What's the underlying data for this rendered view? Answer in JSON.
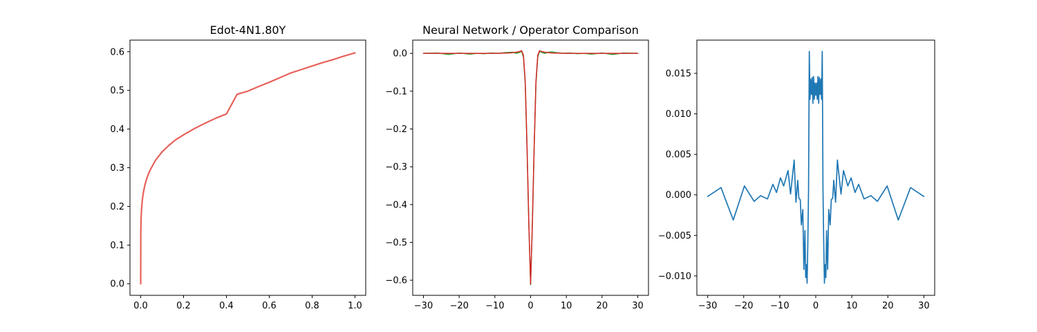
{
  "chart_data": [
    {
      "type": "line",
      "title": "Edot-4N1.80Y",
      "xlabel": "",
      "ylabel": "",
      "xlim": [
        -0.05,
        1.05
      ],
      "ylim": [
        -0.03,
        0.63
      ],
      "xticks": [
        0.0,
        0.2,
        0.4,
        0.6,
        0.8,
        1.0
      ],
      "xtick_labels": [
        "0.0",
        "0.2",
        "0.4",
        "0.6",
        "0.8",
        "1.0"
      ],
      "yticks": [
        0.0,
        0.1,
        0.2,
        0.3,
        0.4,
        0.5,
        0.6
      ],
      "ytick_labels": [
        "0.0",
        "0.1",
        "0.2",
        "0.3",
        "0.4",
        "0.5",
        "0.6"
      ],
      "grid": false,
      "series": [
        {
          "color": "#e8615a",
          "linewidth": 2.2,
          "x": [
            0.0,
            0.0005,
            0.001,
            0.002,
            0.004,
            0.007,
            0.01,
            0.015,
            0.02,
            0.03,
            0.04,
            0.05,
            0.07,
            0.1,
            0.13,
            0.16,
            0.2,
            0.25,
            0.3,
            0.35,
            0.4,
            0.45,
            0.5,
            0.55,
            0.6,
            0.65,
            0.7,
            0.75,
            0.8,
            0.85,
            0.9,
            0.95,
            1.0
          ],
          "y": [
            0.0,
            0.134,
            0.151,
            0.171,
            0.193,
            0.213,
            0.227,
            0.243,
            0.256,
            0.275,
            0.289,
            0.3,
            0.32,
            0.341,
            0.357,
            0.371,
            0.385,
            0.401,
            0.415,
            0.428,
            0.439,
            0.49,
            0.498,
            0.51,
            0.521,
            0.533,
            0.545,
            0.554,
            0.563,
            0.572,
            0.58,
            0.589,
            0.597
          ]
        }
      ]
    },
    {
      "type": "line",
      "title": "Neural Network / Operator Comparison",
      "xlabel": "",
      "ylabel": "",
      "xlim": [
        -33,
        33
      ],
      "ylim": [
        -0.64,
        0.035
      ],
      "xticks": [
        -30,
        -20,
        -10,
        0,
        10,
        20,
        30
      ],
      "xtick_labels": [
        "−30",
        "−20",
        "−10",
        "0",
        "10",
        "20",
        "30"
      ],
      "yticks": [
        0.0,
        -0.1,
        -0.2,
        -0.3,
        -0.4,
        -0.5,
        -0.6
      ],
      "ytick_labels": [
        "0.0",
        "−0.1",
        "−0.2",
        "−0.3",
        "−0.4",
        "−0.5",
        "−0.6"
      ],
      "grid": false,
      "series": [
        {
          "color": "#2ca02c",
          "linewidth": 1.5,
          "x": [
            -30,
            -26,
            -23,
            -20,
            -17,
            -15,
            -13,
            -11,
            -9,
            -7,
            -5,
            -4,
            -3,
            -2.5,
            -2,
            -1.5,
            -1,
            -0.5,
            0,
            0.5,
            1,
            1.5,
            2,
            2.5,
            3,
            4,
            5,
            6,
            7,
            9,
            11,
            13,
            15,
            17,
            20,
            23,
            26,
            30
          ],
          "y": [
            0.0,
            0.001,
            -0.003,
            0.001,
            -0.002,
            0.0,
            -0.001,
            0.001,
            0.0,
            0.002,
            0.003,
            0.0,
            0.003,
            0.006,
            -0.01,
            -0.08,
            -0.25,
            -0.45,
            -0.612,
            -0.45,
            -0.25,
            -0.08,
            -0.01,
            0.006,
            0.003,
            0.0,
            0.003,
            0.004,
            0.002,
            0.0,
            0.001,
            -0.001,
            0.0,
            -0.002,
            0.001,
            -0.003,
            0.001,
            0.0
          ]
        },
        {
          "color": "#d62728",
          "linewidth": 1.5,
          "x": [
            -30,
            -20,
            -10,
            -6,
            -4,
            -3,
            -2.5,
            -2,
            -1.5,
            -1,
            -0.5,
            0,
            0.5,
            1,
            1.5,
            2,
            2.5,
            3,
            4,
            6,
            10,
            20,
            30
          ],
          "y": [
            0.0,
            0.0,
            0.0,
            0.001,
            0.003,
            0.005,
            0.007,
            -0.005,
            -0.075,
            -0.245,
            -0.448,
            -0.61,
            -0.448,
            -0.245,
            -0.075,
            -0.005,
            0.007,
            0.005,
            0.003,
            0.001,
            0.0,
            0.0,
            0.0
          ]
        }
      ]
    },
    {
      "type": "line",
      "title": "",
      "xlabel": "",
      "ylabel": "",
      "xlim": [
        -33,
        33
      ],
      "ylim": [
        -0.0124,
        0.0191
      ],
      "xticks": [
        -30,
        -20,
        -10,
        0,
        10,
        20,
        30
      ],
      "xtick_labels": [
        "−30",
        "−20",
        "−10",
        "0",
        "10",
        "20",
        "30"
      ],
      "yticks": [
        0.015,
        0.01,
        0.005,
        0.0,
        -0.005,
        -0.01
      ],
      "ytick_labels": [
        "0.015",
        "0.010",
        "0.005",
        "0.000",
        "−0.005",
        "−0.010"
      ],
      "grid": false,
      "series": [
        {
          "color": "#1f77b4",
          "linewidth": 1.7,
          "x": [
            -30,
            -26.3,
            -22.9,
            -19.8,
            -17.1,
            -15.3,
            -13.4,
            -11.9,
            -10.9,
            -9.8,
            -8.9,
            -7.7,
            -7.0,
            -6.0,
            -5.5,
            -5.0,
            -4.7,
            -4.3,
            -4.0,
            -3.6,
            -3.3,
            -3.0,
            -2.8,
            -2.6,
            -2.4,
            -2.2,
            -2.0,
            -1.8,
            -1.6,
            -1.4,
            -1.2,
            -1.0,
            -0.8,
            -0.6,
            -0.4,
            -0.2,
            0.0,
            0.2,
            0.4,
            0.6,
            0.8,
            1.0,
            1.2,
            1.4,
            1.6,
            1.8,
            2.0,
            2.2,
            2.4,
            2.6,
            2.8,
            3.0,
            3.3,
            3.6,
            4.0,
            4.3,
            4.7,
            5.0,
            5.5,
            6.0,
            7.0,
            7.7,
            8.9,
            9.8,
            10.9,
            11.9,
            13.4,
            15.3,
            17.1,
            19.8,
            22.9,
            26.3,
            30
          ],
          "y": [
            -0.0002,
            0.0009,
            -0.0031,
            0.0011,
            -0.0008,
            -0.0001,
            -0.0005,
            0.0013,
            0.0003,
            0.0021,
            0.0011,
            0.003,
            0.0001,
            0.0043,
            -0.0009,
            0.0018,
            -0.0004,
            -0.0006,
            -0.0037,
            -0.0018,
            -0.0092,
            -0.0044,
            -0.0102,
            -0.0086,
            -0.0109,
            -0.0058,
            0.0008,
            0.0177,
            0.0118,
            0.0143,
            0.0124,
            0.0145,
            0.0113,
            0.0146,
            0.0118,
            0.0138,
            0.0123,
            0.0138,
            0.0118,
            0.0146,
            0.0113,
            0.0145,
            0.0124,
            0.0143,
            0.0118,
            0.0177,
            0.0008,
            -0.0058,
            -0.0109,
            -0.0086,
            -0.0102,
            -0.0044,
            -0.0092,
            -0.0018,
            -0.0037,
            -0.0006,
            -0.0004,
            0.0018,
            -0.0009,
            0.0043,
            0.0001,
            0.003,
            0.0011,
            0.0021,
            0.0003,
            0.0013,
            -0.0005,
            -0.0001,
            -0.0008,
            0.0011,
            -0.0031,
            0.0009,
            -0.0002
          ]
        }
      ]
    }
  ]
}
